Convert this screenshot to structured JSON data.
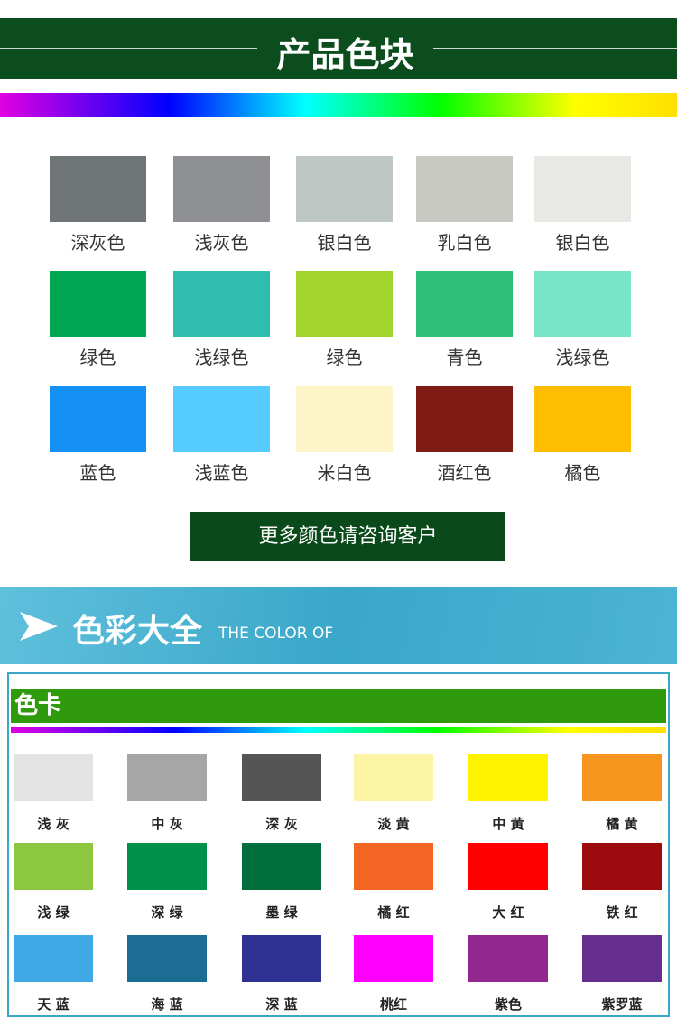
{
  "header": {
    "title": "产品色块"
  },
  "swatches": [
    {
      "label": "深灰色",
      "color": "#6f7476"
    },
    {
      "label": "浅灰色",
      "color": "#8e8f93"
    },
    {
      "label": "银白色",
      "color": "#bfc7c4"
    },
    {
      "label": "乳白色",
      "color": "#c9c9c4"
    },
    {
      "label": "银白色",
      "color": "#e8e8e5"
    },
    {
      "label": "绿色",
      "color": "#00a651"
    },
    {
      "label": "浅绿色",
      "color": "#2ebdae"
    },
    {
      "label": "绿色",
      "color": "#a1d42c"
    },
    {
      "label": "青色",
      "color": "#2fbf78"
    },
    {
      "label": "浅绿色",
      "color": "#78e6c6"
    },
    {
      "label": "蓝色",
      "color": "#1590f5"
    },
    {
      "label": "浅蓝色",
      "color": "#55cbff"
    },
    {
      "label": "米白色",
      "color": "#fdf5c8"
    },
    {
      "label": "酒红色",
      "color": "#7e1b14"
    },
    {
      "label": "橘色",
      "color": "#fdbd00"
    }
  ],
  "button": {
    "text": "更多颜色请咨询客户"
  },
  "banner": {
    "title": "色彩大全",
    "subtitle": "THE COLOR OF"
  },
  "card": {
    "title": "色卡",
    "swatches": [
      {
        "label": "浅 灰",
        "color": "#e3e3e3"
      },
      {
        "label": "中 灰",
        "color": "#a6a6a6"
      },
      {
        "label": "深 灰",
        "color": "#555555"
      },
      {
        "label": "淡 黄",
        "color": "#fdf5a6"
      },
      {
        "label": "中 黄",
        "color": "#fff200"
      },
      {
        "label": "橘 黄",
        "color": "#f7941d"
      },
      {
        "label": "浅 绿",
        "color": "#8dc63f"
      },
      {
        "label": "深 绿",
        "color": "#00904a"
      },
      {
        "label": "墨 绿",
        "color": "#006f3c"
      },
      {
        "label": "橘 红",
        "color": "#f26522"
      },
      {
        "label": "大 红",
        "color": "#ff0000"
      },
      {
        "label": "铁 红",
        "color": "#9e0b0f"
      },
      {
        "label": "天 蓝",
        "color": "#3fa9e6"
      },
      {
        "label": "海 蓝",
        "color": "#1b6d94"
      },
      {
        "label": "深 蓝",
        "color": "#2e3192"
      },
      {
        "label": "桃红",
        "color": "#ff00ff"
      },
      {
        "label": "紫色",
        "color": "#92278f"
      },
      {
        "label": "紫罗蓝",
        "color": "#662d91"
      }
    ]
  }
}
